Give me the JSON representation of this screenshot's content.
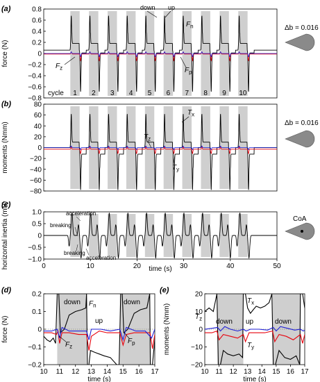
{
  "chart_data": [
    {
      "panel_label": "(a)",
      "type": "line",
      "ylabel": "force (N)",
      "ylim": [
        -0.8,
        0.8
      ],
      "yticks": [
        "0.8",
        "0.6",
        "0.4",
        "0.2",
        "0",
        "−0.2",
        "−0.4",
        "−0.6",
        "−0.8"
      ],
      "ytick_values": [
        0.8,
        0.6,
        0.4,
        0.2,
        0,
        -0.2,
        -0.4,
        -0.6,
        -0.8
      ],
      "time_window_s": [
        0,
        50
      ],
      "down_start_times_s": [
        3.0,
        7.0,
        11.0,
        15.0,
        19.0,
        23.0,
        27.0,
        31.0,
        35.0,
        39.0
      ],
      "down_duration_s": 2.0,
      "cycle_label": "cycle",
      "cycle_numbers": [
        "1",
        "2",
        "3",
        "4",
        "5",
        "6",
        "7",
        "8",
        "9",
        "10"
      ],
      "annotations": {
        "down": "down",
        "up": "up",
        "Fn": "F",
        "Fn_sub": "n",
        "Fz": "F",
        "Fz_sub": "z",
        "Fp": "F",
        "Fp_sub": "p"
      },
      "inset_label": "Δb = 0.016",
      "series": [
        {
          "name": "Fn",
          "color": "#000000",
          "baseline": 0.06,
          "down_peak": 0.62,
          "down_plateau": 0.12,
          "up_trough": -0.75,
          "up_plateau": -0.05
        },
        {
          "name": "Fz",
          "color": "#e8000b",
          "baseline": -0.01,
          "down_peak": 0.04,
          "up_trough": -0.12
        },
        {
          "name": "Fp",
          "color": "#1f1fd6",
          "baseline": 0.0,
          "down_peak": 0.03,
          "up_trough": -0.06
        }
      ]
    },
    {
      "panel_label": "(b)",
      "type": "line",
      "ylabel": "moments (Nmm)",
      "ylim": [
        -80,
        80
      ],
      "yticks": [
        "80",
        "60",
        "40",
        "20",
        "0",
        "−20",
        "−40",
        "−60",
        "−80"
      ],
      "ytick_values": [
        80,
        60,
        40,
        20,
        0,
        -20,
        -40,
        -60,
        -80
      ],
      "time_window_s": [
        0,
        50
      ],
      "annotations": {
        "Tx": "T",
        "Tx_sub": "x",
        "Tz": "T",
        "Tz_sub": "z",
        "Ty": "T",
        "Ty_sub": "y"
      },
      "inset_label": "Δb = 0.016",
      "series": [
        {
          "name": "Tx",
          "color": "#000000",
          "down_peak": 62,
          "down_plateau": 10,
          "up_trough": -78,
          "up_plateau": -12
        },
        {
          "name": "Tz",
          "color": "#e8000b",
          "baseline": -3,
          "down_peak": 4,
          "up_trough": -8
        },
        {
          "name": "Ty",
          "color": "#1f1fd6",
          "baseline": 0,
          "down_peak": 3,
          "up_trough": -4
        }
      ]
    },
    {
      "panel_label": "(c)",
      "type": "line",
      "ylabel": "horizontal inertia (mN)",
      "xlabel": "time (s)",
      "xlim": [
        0,
        50
      ],
      "xticks": [
        "0",
        "10",
        "20",
        "30",
        "40",
        "50"
      ],
      "xtick_values": [
        0,
        10,
        20,
        30,
        40,
        50
      ],
      "ylim": [
        -1.0,
        1.0
      ],
      "yticks": [
        "1.0",
        "0.5",
        "0",
        "−0.5",
        "−1.0"
      ],
      "ytick_values": [
        1.0,
        0.5,
        0,
        -0.5,
        -1.0
      ],
      "annotations": {
        "acceleration_top": "acceleration",
        "breaking_top": "breaking",
        "breaking_bottom": "breaking",
        "acceleration_bottom": "acceleration"
      },
      "inset_label": "CoA",
      "series": [
        {
          "name": "inertia",
          "color": "#000000",
          "down_peak": 0.95,
          "down_trough": -0.45,
          "up_trough": -0.95,
          "up_peak": 0.45
        }
      ]
    },
    {
      "panel_label": "(d)",
      "type": "line",
      "ylabel": "force (N)",
      "xlabel": "time (s)",
      "xlim": [
        10,
        17
      ],
      "xticks": [
        "10",
        "11",
        "12",
        "13",
        "14",
        "15",
        "16",
        "17"
      ],
      "xtick_values": [
        10,
        11,
        12,
        13,
        14,
        15,
        16,
        17
      ],
      "ylim": [
        -0.2,
        0.2
      ],
      "yticks": [
        "0.2",
        "0.1",
        "0",
        "−0.1",
        "−0.2"
      ],
      "ytick_values": [
        0.2,
        0.1,
        0,
        -0.1,
        -0.2
      ],
      "down_intervals_s": [
        [
          10.85,
          12.7
        ],
        [
          14.8,
          16.7
        ]
      ],
      "annotations": {
        "down1": "down",
        "down2": "down",
        "up": "up",
        "Fn": "F",
        "Fn_sub": "n",
        "Fz": "F",
        "Fz_sub": "z",
        "Fp": "F",
        "Fp_sub": "p"
      },
      "series": [
        {
          "name": "Fn",
          "color": "#000000",
          "points": [
            [
              10,
              -0.04
            ],
            [
              10.2,
              -0.06
            ],
            [
              10.4,
              -0.07
            ],
            [
              10.6,
              -0.05
            ],
            [
              10.75,
              -0.08
            ],
            [
              10.85,
              0.2
            ],
            [
              10.95,
              0.2
            ],
            [
              11.05,
              -0.02
            ],
            [
              11.3,
              0.0
            ],
            [
              11.6,
              0.08
            ],
            [
              12.0,
              0.1
            ],
            [
              12.4,
              0.11
            ],
            [
              12.65,
              0.12
            ],
            [
              12.7,
              0.2
            ],
            [
              12.75,
              -0.2
            ],
            [
              12.85,
              -0.2
            ],
            [
              12.95,
              -0.12
            ],
            [
              13.2,
              -0.13
            ],
            [
              13.5,
              -0.14
            ],
            [
              13.8,
              -0.15
            ],
            [
              14.2,
              -0.16
            ],
            [
              14.6,
              -0.2
            ],
            [
              14.75,
              -0.2
            ],
            [
              14.85,
              0.2
            ],
            [
              14.95,
              0.2
            ],
            [
              15.05,
              -0.02
            ],
            [
              15.3,
              0.0
            ],
            [
              15.7,
              0.09
            ],
            [
              16.1,
              0.11
            ],
            [
              16.5,
              0.12
            ],
            [
              16.68,
              0.2
            ],
            [
              16.72,
              -0.2
            ],
            [
              16.85,
              -0.2
            ],
            [
              17,
              -0.06
            ]
          ]
        },
        {
          "name": "Fz",
          "color": "#e8000b",
          "points": [
            [
              10,
              -0.02
            ],
            [
              10.5,
              -0.02
            ],
            [
              10.8,
              -0.03
            ],
            [
              10.9,
              -0.01
            ],
            [
              11.0,
              -0.08
            ],
            [
              11.15,
              -0.02
            ],
            [
              11.6,
              -0.02
            ],
            [
              12.2,
              -0.03
            ],
            [
              12.7,
              -0.03
            ],
            [
              12.85,
              -0.12
            ],
            [
              13.0,
              -0.04
            ],
            [
              13.5,
              -0.01
            ],
            [
              14.0,
              -0.02
            ],
            [
              14.6,
              -0.02
            ],
            [
              14.8,
              -0.02
            ],
            [
              15.0,
              -0.09
            ],
            [
              15.2,
              -0.03
            ],
            [
              15.7,
              -0.02
            ],
            [
              16.2,
              -0.02
            ],
            [
              16.7,
              -0.02
            ],
            [
              16.85,
              -0.11
            ],
            [
              17,
              -0.03
            ]
          ]
        },
        {
          "name": "Fp",
          "color": "#1f1fd6",
          "points": [
            [
              10,
              -0.01
            ],
            [
              10.5,
              -0.01
            ],
            [
              10.85,
              0.0
            ],
            [
              11.0,
              -0.05
            ],
            [
              11.15,
              0.01
            ],
            [
              11.6,
              -0.01
            ],
            [
              12.2,
              -0.01
            ],
            [
              12.7,
              -0.01
            ],
            [
              12.85,
              -0.06
            ],
            [
              13.0,
              0.0
            ],
            [
              13.6,
              0.0
            ],
            [
              14.2,
              -0.01
            ],
            [
              14.8,
              0.0
            ],
            [
              15.0,
              -0.06
            ],
            [
              15.2,
              0.01
            ],
            [
              15.8,
              -0.01
            ],
            [
              16.4,
              -0.01
            ],
            [
              16.8,
              -0.05
            ],
            [
              17,
              0.0
            ]
          ]
        }
      ]
    },
    {
      "panel_label": "(e)",
      "type": "line",
      "ylabel": "moments (Nmm)",
      "xlabel": "time (s)",
      "xlim": [
        10,
        17
      ],
      "xticks": [
        "10",
        "11",
        "12",
        "13",
        "14",
        "15",
        "16",
        "17"
      ],
      "xtick_values": [
        10,
        11,
        12,
        13,
        14,
        15,
        16,
        17
      ],
      "ylim": [
        -20,
        20
      ],
      "yticks": [
        "20",
        "10",
        "0",
        "−10",
        "−20"
      ],
      "ytick_values": [
        20,
        10,
        0,
        -10,
        -20
      ],
      "down_intervals_s": [
        [
          10.9,
          12.7
        ],
        [
          14.75,
          16.7
        ]
      ],
      "annotations": {
        "down1": "down",
        "down2": "down",
        "up": "up",
        "Tx": "T",
        "Tx_sub": "x",
        "Tz": "T",
        "Tz_sub": "z",
        "Ty": "T",
        "Ty_sub": "y"
      },
      "series": [
        {
          "name": "Tx",
          "color": "#000000",
          "points": [
            [
              10,
              10
            ],
            [
              10.3,
              12
            ],
            [
              10.6,
              10
            ],
            [
              10.85,
              20
            ],
            [
              10.95,
              -20
            ],
            [
              11.1,
              -20
            ],
            [
              11.3,
              -12
            ],
            [
              11.6,
              -14
            ],
            [
              12.0,
              -15
            ],
            [
              12.4,
              -14
            ],
            [
              12.65,
              -16
            ],
            [
              12.7,
              20
            ],
            [
              12.85,
              20
            ],
            [
              13.0,
              12
            ],
            [
              13.2,
              9
            ],
            [
              13.4,
              11
            ],
            [
              13.6,
              13
            ],
            [
              13.9,
              12
            ],
            [
              14.2,
              13
            ],
            [
              14.5,
              15
            ],
            [
              14.7,
              20
            ],
            [
              14.8,
              -20
            ],
            [
              14.95,
              -20
            ],
            [
              15.2,
              -12
            ],
            [
              15.6,
              -16
            ],
            [
              16.0,
              -17
            ],
            [
              16.4,
              -15
            ],
            [
              16.65,
              -20
            ],
            [
              16.7,
              20
            ],
            [
              16.85,
              20
            ],
            [
              17,
              12
            ]
          ]
        },
        {
          "name": "Tz",
          "color": "#e8000b",
          "points": [
            [
              10,
              -2
            ],
            [
              10.5,
              -2
            ],
            [
              10.85,
              -1
            ],
            [
              11.0,
              -6
            ],
            [
              11.3,
              -3
            ],
            [
              11.8,
              -4
            ],
            [
              12.3,
              -5
            ],
            [
              12.7,
              -3
            ],
            [
              12.85,
              -7
            ],
            [
              13.1,
              -2
            ],
            [
              13.6,
              -2
            ],
            [
              14.2,
              -2
            ],
            [
              14.75,
              -1
            ],
            [
              14.9,
              -7
            ],
            [
              15.2,
              -3
            ],
            [
              15.7,
              -4
            ],
            [
              16.2,
              -6
            ],
            [
              16.7,
              -3
            ],
            [
              16.85,
              -8
            ],
            [
              17,
              -3
            ]
          ]
        },
        {
          "name": "Ty",
          "color": "#1f1fd6",
          "points": [
            [
              10,
              0
            ],
            [
              10.5,
              0.5
            ],
            [
              10.9,
              1
            ],
            [
              11.1,
              -1
            ],
            [
              11.4,
              1.5
            ],
            [
              11.8,
              0
            ],
            [
              12.3,
              -1
            ],
            [
              12.7,
              0
            ],
            [
              12.9,
              -1
            ],
            [
              13.2,
              0
            ],
            [
              13.8,
              0
            ],
            [
              14.4,
              -0.5
            ],
            [
              14.8,
              1
            ],
            [
              15.0,
              -1
            ],
            [
              15.3,
              1.5
            ],
            [
              15.8,
              0.5
            ],
            [
              16.3,
              -0.5
            ],
            [
              16.7,
              0
            ],
            [
              16.9,
              -1
            ],
            [
              17,
              -0.5
            ]
          ]
        }
      ]
    }
  ]
}
